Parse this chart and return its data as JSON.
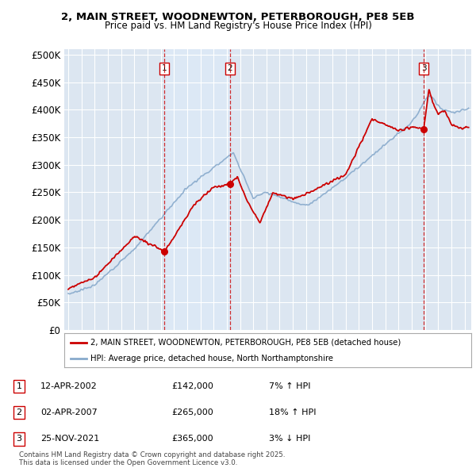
{
  "title_line1": "2, MAIN STREET, WOODNEWTON, PETERBOROUGH, PE8 5EB",
  "title_line2": "Price paid vs. HM Land Registry's House Price Index (HPI)",
  "sales": [
    {
      "date_x": 2002.28,
      "price": 142000,
      "label": "1"
    },
    {
      "date_x": 2007.25,
      "price": 265000,
      "label": "2"
    },
    {
      "date_x": 2021.9,
      "price": 365000,
      "label": "3"
    }
  ],
  "sale_details": [
    {
      "num": "1",
      "date": "12-APR-2002",
      "price": "£142,000",
      "pct": "7%",
      "dir": "↑",
      "rel": "HPI"
    },
    {
      "num": "2",
      "date": "02-APR-2007",
      "price": "£265,000",
      "pct": "18%",
      "dir": "↑",
      "rel": "HPI"
    },
    {
      "num": "3",
      "date": "25-NOV-2021",
      "price": "£365,000",
      "pct": "3%",
      "dir": "↓",
      "rel": "HPI"
    }
  ],
  "legend_line1": "2, MAIN STREET, WOODNEWTON, PETERBOROUGH, PE8 5EB (detached house)",
  "legend_line2": "HPI: Average price, detached house, North Northamptonshire",
  "footnote": "Contains HM Land Registry data © Crown copyright and database right 2025.\nThis data is licensed under the Open Government Licence v3.0.",
  "price_color": "#cc0000",
  "hpi_color": "#88aacc",
  "shade_color": "#dce8f5",
  "bg_color": "#dce6f1",
  "plot_bg": "#ffffff",
  "ylim": [
    0,
    500000
  ],
  "yticks": [
    0,
    50000,
    100000,
    150000,
    200000,
    250000,
    300000,
    350000,
    400000,
    450000,
    500000
  ],
  "xlim_start": 1994.7,
  "xlim_end": 2025.5
}
